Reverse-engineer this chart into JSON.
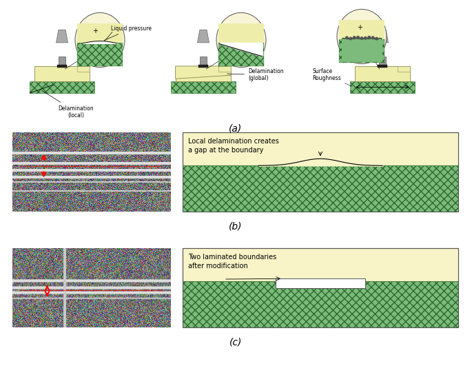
{
  "bg_color": "#ffffff",
  "yellow_fill": "#f5f0c8",
  "yellow_fill2": "#eeeeaa",
  "green_fill": "#90c090",
  "green_hatch": "xxxxx",
  "gray_device": "#b0b0b0",
  "dark_gray": "#606060",
  "label_a": "(a)",
  "label_b": "(b)",
  "label_c": "(c)",
  "text_liq": "Liquid pressure",
  "text_delam_local": "Delamination\n(local)",
  "text_delam_global": "Delamination\n(global)",
  "text_surface": "Surface\nRoughness",
  "text_b_diagram": "Local delamination creates\na gap at the boundary",
  "text_c_diagram": "Two laminated boundaries\nafter modification",
  "arrow_color": "#cc0000",
  "line_color": "#000000",
  "font_size_label": 10,
  "font_size_text": 7,
  "font_size_anno": 6.5
}
